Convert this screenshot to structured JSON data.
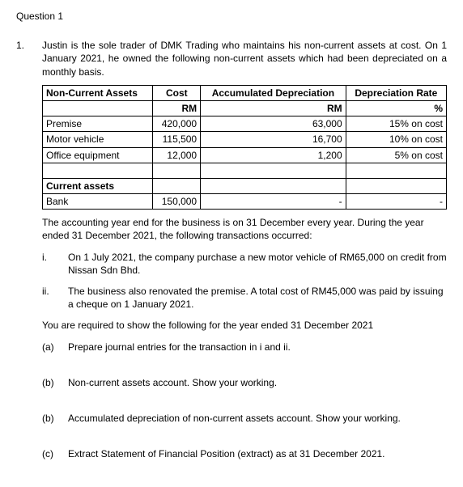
{
  "question_header": "Question 1",
  "num": "1.",
  "intro": "Justin is the sole trader of DMK Trading who maintains his non-current assets at cost. On 1 January 2021, he owned the following non-current assets which had been depreciated on a monthly basis.",
  "table": {
    "h_nc": "Non-Current Assets",
    "h_cost": "Cost",
    "h_acc": "Accumulated Depreciation",
    "h_rate": "Depreciation Rate",
    "rm": "RM",
    "pct": "%",
    "r1": {
      "name": "Premise",
      "cost": "420,000",
      "acc": "63,000",
      "rate": "15% on cost"
    },
    "r2": {
      "name": "Motor vehicle",
      "cost": "115,500",
      "acc": "16,700",
      "rate": "10% on cost"
    },
    "r3": {
      "name": "Office equipment",
      "cost": "12,000",
      "acc": "1,200",
      "rate": "5% on cost"
    },
    "ca": "Current assets",
    "bank": {
      "name": "Bank",
      "cost": "150,000",
      "acc": "-",
      "rate": "-"
    }
  },
  "para2": "The accounting year end for the business is on 31 December every year. During the year ended 31 December 2021, the following transactions occurred:",
  "i": {
    "label": "i.",
    "text": "On 1 July 2021, the company purchase a new motor vehicle of RM65,000 on credit from Nissan Sdn Bhd."
  },
  "ii": {
    "label": "ii.",
    "text": "The business also renovated the premise. A total cost of RM45,000 was paid by issuing a cheque on 1 January 2021."
  },
  "req": "You are required to show the following for the year ended 31 December 2021",
  "a": {
    "label": "(a)",
    "text": "Prepare journal entries for the transaction in i and ii."
  },
  "b": {
    "label": "(b)",
    "text": "Non-current assets account. Show your working."
  },
  "b2": {
    "label": "(b)",
    "text": "Accumulated depreciation of non-current assets account. Show your working."
  },
  "c": {
    "label": "(c)",
    "text": "Extract Statement of Financial Position (extract) as at 31 December 2021."
  }
}
